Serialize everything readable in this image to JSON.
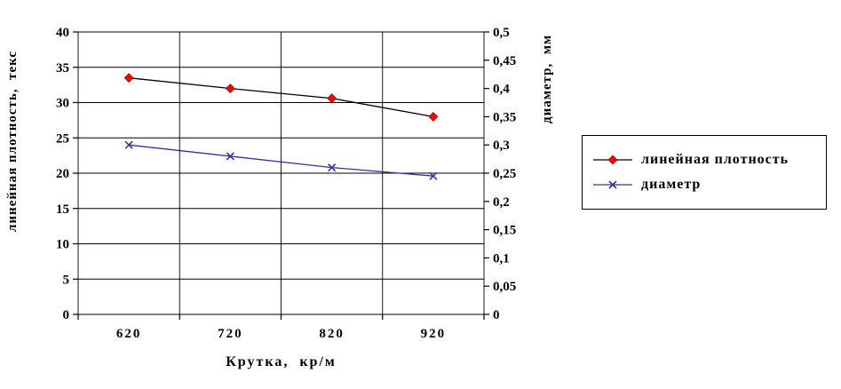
{
  "chart_data": {
    "type": "line",
    "x": [
      "620",
      "720",
      "820",
      "920"
    ],
    "xlabel": "Крутка,  кр/м",
    "left_axis": {
      "label": "линейная плотность,  текс",
      "min": 0,
      "max": 40,
      "step": 5
    },
    "right_axis": {
      "label": "диаметр,  мм",
      "min": 0,
      "max": 0.5,
      "step": 0.05
    },
    "grid": true,
    "legend_position": "right",
    "series": [
      {
        "name": "линейная плотность",
        "axis": "left",
        "marker": "diamond",
        "color": "#000000",
        "marker_color": "#ff0000",
        "values": [
          33.5,
          32,
          30.6,
          28
        ]
      },
      {
        "name": "диаметр",
        "axis": "right",
        "marker": "x",
        "color": "#3333aa",
        "marker_color": "#3333aa",
        "values": [
          0.3,
          0.28,
          0.26,
          0.245
        ]
      }
    ]
  }
}
